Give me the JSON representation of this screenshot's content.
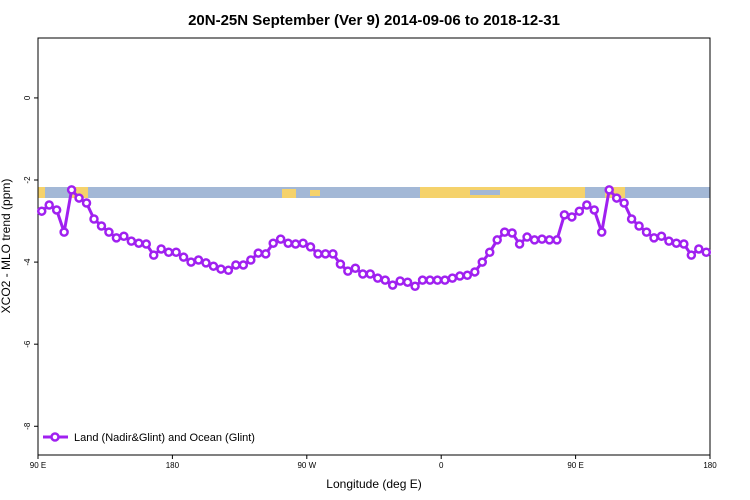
{
  "chart_data": {
    "type": "line",
    "title": "20N-25N September (Ver 9)   2014-09-06 to 2018-12-31",
    "x_label": "Longitude (deg E)",
    "y_label": "XCO2 - MLO trend (ppm)",
    "xlim": [
      90,
      540
    ],
    "ylim": [
      -8.7,
      1.46
    ],
    "xticks": [
      {
        "value": 90,
        "label": "90 E"
      },
      180,
      {
        "value": 270,
        "label": "90 W"
      },
      {
        "value": 360,
        "label": "0"
      },
      {
        "value": 450,
        "label": "90 E"
      },
      {
        "value": 540,
        "label": "180"
      }
    ],
    "yticks": [
      0,
      -2,
      -4,
      -6,
      -8
    ],
    "legend": "lower left",
    "x": [
      92.5,
      97.5,
      102.5,
      107.5,
      112.5,
      117.5,
      122.5,
      127.5,
      132.5,
      137.5,
      142.5,
      147.5,
      152.5,
      157.5,
      162.5,
      167.5,
      172.5,
      177.5,
      182.5,
      187.5,
      192.5,
      197.5,
      202.5,
      207.5,
      212.5,
      217.5,
      222.5,
      227.5,
      232.5,
      237.5,
      242.5,
      247.5,
      252.5,
      257.5,
      262.5,
      267.5,
      272.5,
      277.5,
      282.5,
      287.5,
      292.5,
      297.5,
      302.5,
      307.5,
      312.5,
      317.5,
      322.5,
      327.5,
      332.5,
      337.5,
      342.5,
      347.5,
      352.5,
      357.5,
      362.5,
      367.5,
      372.5,
      377.5,
      382.5,
      387.5,
      392.5,
      397.5,
      402.5,
      407.5,
      412.5,
      417.5,
      422.5,
      427.5,
      432.5,
      437.5,
      442.5,
      447.5,
      452.5,
      457.5,
      462.5,
      467.5,
      472.5,
      477.5,
      482.5,
      487.5,
      492.5,
      497.5,
      502.5,
      507.5,
      512.5,
      517.5,
      522.5,
      527.5,
      532.5,
      537.5
    ],
    "series": [
      {
        "name": "Land (Nadir&Glint) and Ocean (Glint)",
        "color": "#a020f0",
        "values": [
          -2.76,
          -2.61,
          -2.73,
          -3.27,
          -2.24,
          -2.44,
          -2.56,
          -2.95,
          -3.12,
          -3.27,
          -3.41,
          -3.37,
          -3.49,
          -3.54,
          -3.56,
          -3.83,
          -3.68,
          -3.76,
          -3.76,
          -3.88,
          -4.0,
          -3.95,
          -4.02,
          -4.1,
          -4.17,
          -4.2,
          -4.07,
          -4.07,
          -3.95,
          -3.78,
          -3.8,
          -3.54,
          -3.44,
          -3.54,
          -3.56,
          -3.54,
          -3.63,
          -3.8,
          -3.8,
          -3.8,
          -4.05,
          -4.22,
          -4.15,
          -4.29,
          -4.29,
          -4.39,
          -4.44,
          -4.56,
          -4.46,
          -4.49,
          -4.59,
          -4.44,
          -4.44,
          -4.44,
          -4.44,
          -4.39,
          -4.34,
          -4.32,
          -4.24,
          -4.0,
          -3.76,
          -3.46,
          -3.27,
          -3.29,
          -3.56,
          -3.39,
          -3.46,
          -3.44,
          -3.46,
          -3.46,
          -2.85,
          -2.9,
          -2.76,
          -2.61,
          -2.73,
          -3.27,
          -2.24,
          -2.44,
          -2.56,
          -2.95,
          -3.12,
          -3.27,
          -3.41,
          -3.37,
          -3.49,
          -3.54,
          -3.56,
          -3.83,
          -3.68,
          -3.76
        ]
      }
    ]
  }
}
